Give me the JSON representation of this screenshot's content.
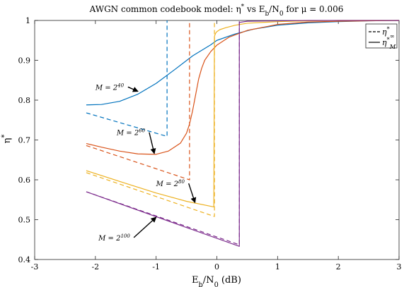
{
  "chart_data": {
    "type": "line",
    "title": "AWGN common codebook model: η* vs E_b/N_0 for μ = 0.006",
    "xlabel": "E_b/N_0 (dB)",
    "ylabel": "η*",
    "xlim": [
      -3,
      3
    ],
    "ylim": [
      0.4,
      1
    ],
    "xticks": [
      -3,
      -2,
      -1,
      0,
      1,
      2,
      3
    ],
    "yticks": [
      0.4,
      0.5,
      0.6,
      0.7,
      0.8,
      0.9,
      1
    ],
    "grid": false,
    "legend_position": "top-right",
    "legend": [
      {
        "label": "η*_∞",
        "style": "dashed"
      },
      {
        "label": "η*_M",
        "style": "solid"
      }
    ],
    "colors": {
      "M40": "#0072BD",
      "M60": "#D95319",
      "M80": "#EDB120",
      "M100": "#7E2F8E"
    },
    "series": [
      {
        "key": "M40_inf",
        "group": "M40",
        "style": "dashed",
        "x": [
          -2.15,
          -0.82,
          -0.82,
          -0.82
        ],
        "y": [
          0.768,
          0.709,
          0.709,
          1.0
        ]
      },
      {
        "key": "M40_M",
        "group": "M40",
        "style": "solid",
        "x": [
          -2.15,
          -1.9,
          -1.6,
          -1.3,
          -1.0,
          -0.7,
          -0.4,
          -0.1,
          0.0,
          0.3,
          0.6,
          1.0,
          1.5,
          2.0,
          2.5,
          3.0
        ],
        "y": [
          0.788,
          0.789,
          0.797,
          0.815,
          0.842,
          0.876,
          0.911,
          0.939,
          0.95,
          0.966,
          0.978,
          0.988,
          0.994,
          0.997,
          0.999,
          1.0
        ]
      },
      {
        "key": "M60_inf",
        "group": "M60",
        "style": "dashed",
        "x": [
          -2.15,
          -0.45,
          -0.45
        ],
        "y": [
          0.686,
          0.6,
          1.0
        ]
      },
      {
        "key": "M60_M",
        "group": "M60",
        "style": "solid",
        "x": [
          -2.15,
          -1.9,
          -1.6,
          -1.3,
          -1.0,
          -0.8,
          -0.6,
          -0.5,
          -0.45,
          -0.4,
          -0.35,
          -0.3,
          -0.25,
          -0.2,
          -0.1,
          0.0,
          0.2,
          0.5,
          1.0,
          1.5,
          2.0,
          2.5,
          3.0
        ],
        "y": [
          0.691,
          0.682,
          0.672,
          0.665,
          0.664,
          0.672,
          0.692,
          0.717,
          0.74,
          0.773,
          0.813,
          0.853,
          0.88,
          0.9,
          0.922,
          0.938,
          0.958,
          0.975,
          0.99,
          0.996,
          0.998,
          0.999,
          1.0
        ]
      },
      {
        "key": "M80_inf",
        "group": "M80",
        "style": "dashed",
        "x": [
          -2.15,
          -0.04,
          -0.04
        ],
        "y": [
          0.618,
          0.508,
          1.0
        ]
      },
      {
        "key": "M80_M",
        "group": "M80",
        "style": "solid",
        "x": [
          -2.15,
          -1.6,
          -1.0,
          -0.5,
          -0.05,
          -0.04,
          -0.02,
          0.0,
          0.05,
          0.15,
          0.3,
          0.5,
          1.0,
          1.5,
          2.0,
          2.5,
          3.0
        ],
        "y": [
          0.623,
          0.596,
          0.567,
          0.546,
          0.532,
          0.96,
          0.968,
          0.972,
          0.977,
          0.982,
          0.988,
          0.993,
          0.997,
          0.999,
          1.0,
          1.0,
          1.0
        ]
      },
      {
        "key": "M100_inf",
        "group": "M100",
        "style": "dashed",
        "x": [
          -2.15,
          0.37,
          0.37
        ],
        "y": [
          0.57,
          0.437,
          1.0
        ]
      },
      {
        "key": "M100_M",
        "group": "M100",
        "style": "solid",
        "x": [
          -2.15,
          0.37,
          0.37,
          0.5,
          1.0,
          1.5,
          2.0,
          3.0
        ],
        "y": [
          0.57,
          0.433,
          0.995,
          0.998,
          0.999,
          1.0,
          1.0,
          1.0
        ]
      }
    ],
    "annotations": [
      {
        "label_base": "M = 2",
        "label_exp": "40",
        "series": "M40",
        "text_x": -2.0,
        "text_y": 0.826,
        "arrow_to_x": -1.3,
        "arrow_to_y": 0.822
      },
      {
        "label_base": "M = 2",
        "label_exp": "60",
        "series": "M60",
        "text_x": -1.65,
        "text_y": 0.712,
        "arrow_to_x": -1.03,
        "arrow_to_y": 0.666
      },
      {
        "label_base": "M = 2",
        "label_exp": "80",
        "series": "M80",
        "text_x": -1.0,
        "text_y": 0.584,
        "arrow_to_x": -0.36,
        "arrow_to_y": 0.543
      },
      {
        "label_base": "M = 2",
        "label_exp": "100",
        "series": "M100",
        "text_x": -1.95,
        "text_y": 0.448,
        "arrow_to_x": -1.0,
        "arrow_to_y": 0.506
      }
    ]
  }
}
